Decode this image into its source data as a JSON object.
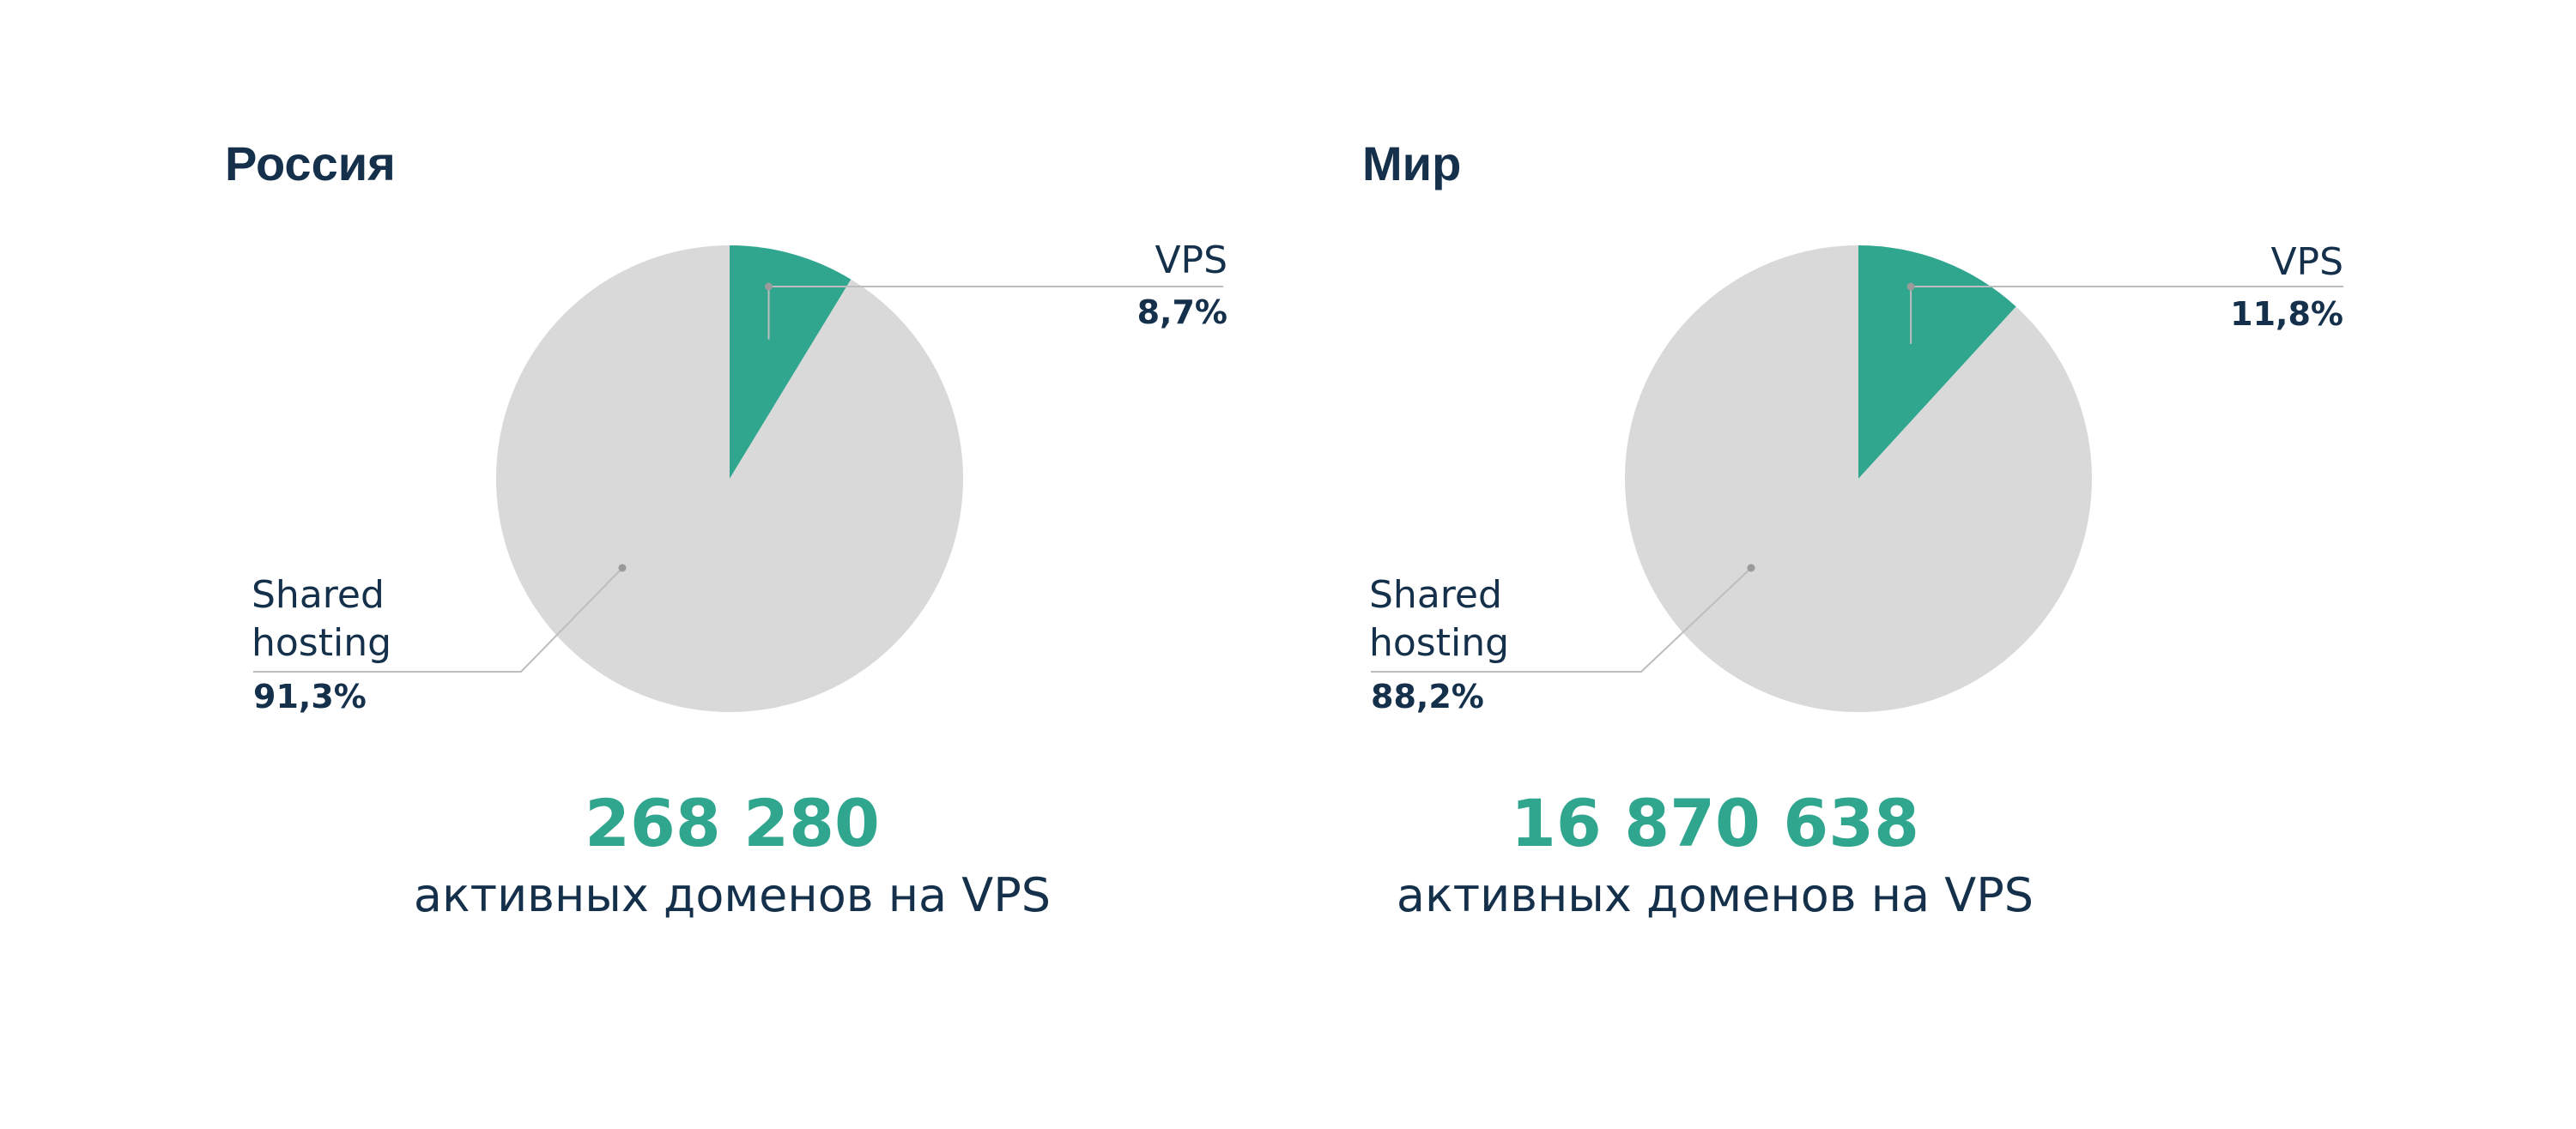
{
  "colors": {
    "vps": "#30a68e",
    "shared": "#d9d9d9",
    "text": "#14304a",
    "leader": "#bdbdbd",
    "dot": "#9a9a9a"
  },
  "chart_data": [
    {
      "type": "pie",
      "title": "Россия",
      "slices": [
        {
          "label": "VPS",
          "value": 8.7,
          "display": "8,7%"
        },
        {
          "label": "Shared hosting",
          "value": 91.3,
          "display": "91,3%"
        }
      ],
      "headline_number": "268 280",
      "caption": "активных доменов на VPS"
    },
    {
      "type": "pie",
      "title": "Мир",
      "slices": [
        {
          "label": "VPS",
          "value": 11.8,
          "display": "11,8%"
        },
        {
          "label": "Shared hosting",
          "value": 88.2,
          "display": "88,2%"
        }
      ],
      "headline_number": "16 870 638",
      "caption": "активных доменов на VPS"
    }
  ]
}
